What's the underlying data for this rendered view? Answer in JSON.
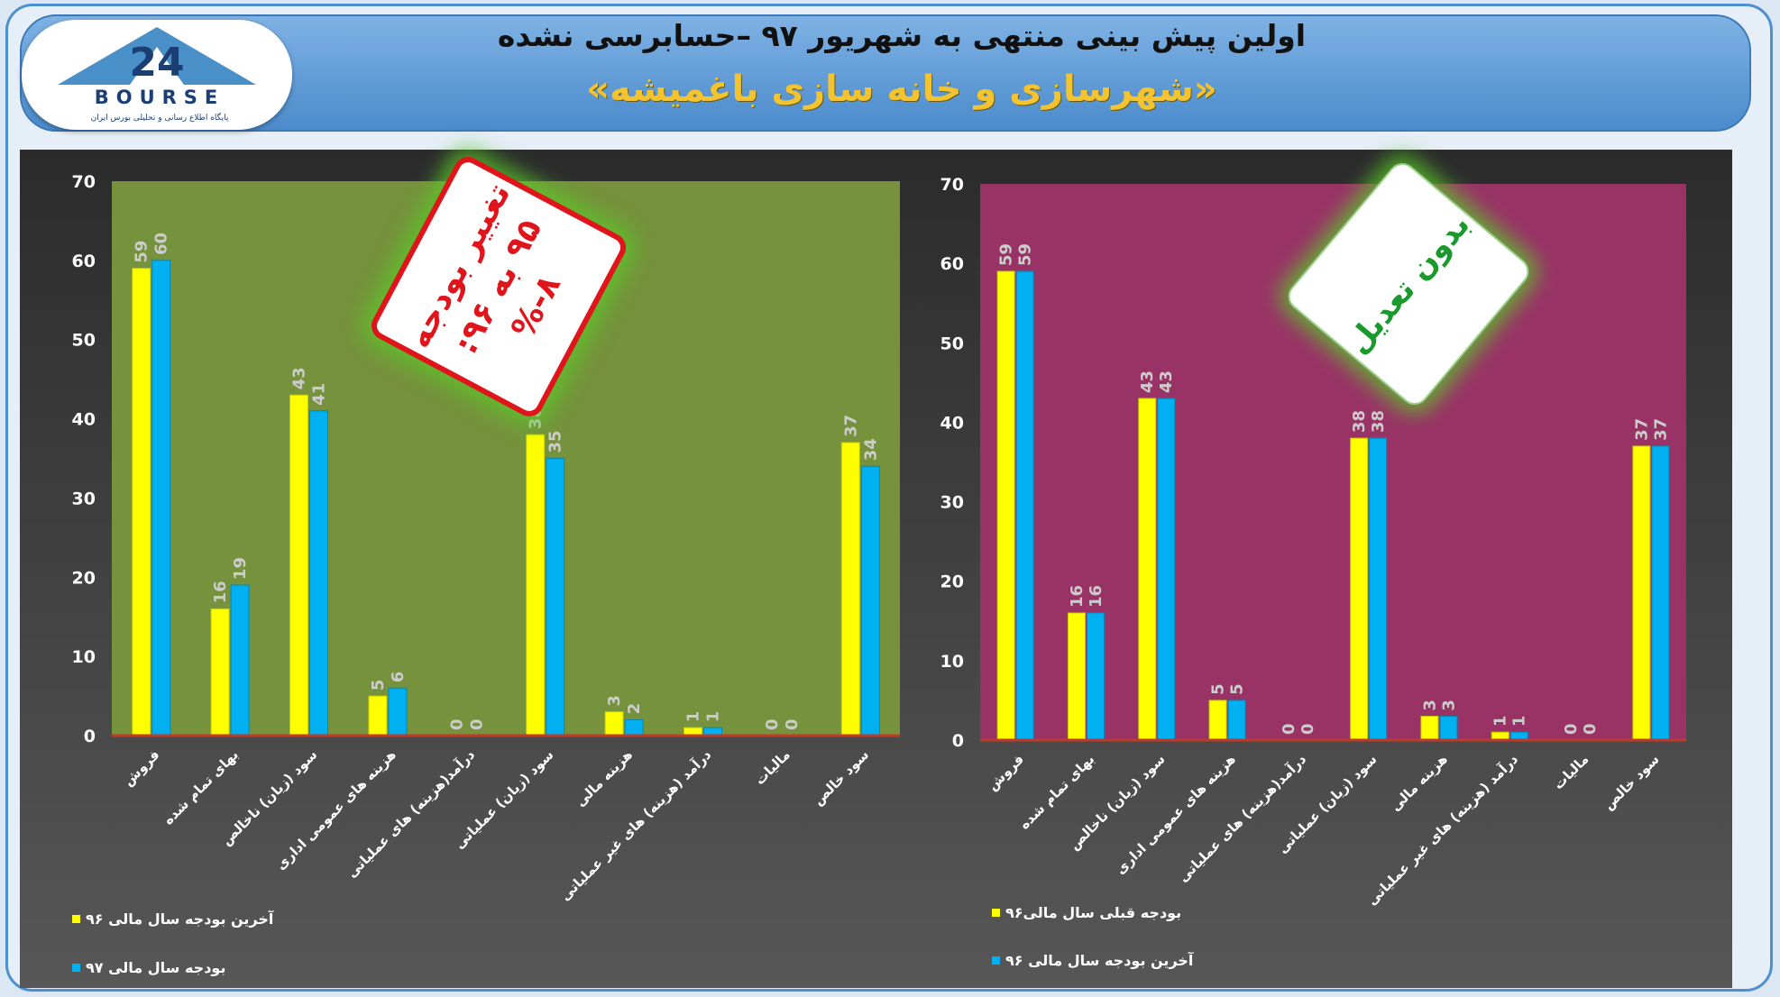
{
  "header": {
    "title": "اولین پیش بینی منتهی به شهریور ۹۷ –حسابرسی نشده",
    "subtitle": "«شهرسازی و خانه سازی باغمیشه»",
    "logo_text": "BOURSE",
    "logo_subtitle": "پایگاه اطلاع رسانی و تحلیلی بورس ایران"
  },
  "stamps": {
    "left_lines": [
      "تغییر بودجه",
      "۹۵ به ۹۶:",
      "۸-%"
    ],
    "right_text": "بدون تعدیل"
  },
  "colors": {
    "yellow": "#ffff00",
    "cyan": "#00b0f0",
    "left_plot_bg": "#76923c",
    "right_plot_bg": "#993366"
  },
  "chart_data": [
    {
      "type": "bar",
      "categories": [
        "فروش",
        "بهای تمام شده",
        "سود (زیان) ناخالص",
        "هزینه های عمومی اداری",
        "درآمد(هزینه) های عملیاتی",
        "سود (زیان) عملیاتی",
        "هزینه مالی",
        "درآمد (هزینه) های غیر عملیاتی",
        "مالیات",
        "سود خالص"
      ],
      "series": [
        {
          "name": "آخرین بودجه سال مالی ۹۶",
          "color": "yellow",
          "values": [
            59,
            16,
            43,
            5,
            0,
            38,
            3,
            1,
            0,
            37
          ]
        },
        {
          "name": "بودجه سال مالی ۹۷",
          "color": "cyan",
          "values": [
            60,
            19,
            41,
            6,
            0,
            35,
            2,
            1,
            0,
            34
          ]
        }
      ],
      "yticks": [
        "0",
        "10",
        "20",
        "30",
        "40",
        "50",
        "60",
        "70"
      ],
      "ylim": [
        0,
        70
      ],
      "grid": false,
      "legend": "bottom-left"
    },
    {
      "type": "bar",
      "categories": [
        "فروش",
        "بهای تمام شده",
        "سود (زیان) ناخالص",
        "هزینه های عمومی اداری",
        "درآمد(هزینه) های عملیاتی",
        "سود (زیان) عملیاتی",
        "هزینه مالی",
        "درآمد (هزینه) های غیر عملیاتی",
        "مالیات",
        "سود خالص"
      ],
      "series": [
        {
          "name": "بودجه قبلی سال مالی۹۶",
          "color": "yellow",
          "values": [
            59,
            16,
            43,
            5,
            0,
            38,
            3,
            1,
            0,
            37
          ]
        },
        {
          "name": "آخرین بودجه سال مالی ۹۶",
          "color": "cyan",
          "values": [
            59,
            16,
            43,
            5,
            0,
            38,
            3,
            1,
            0,
            37
          ]
        }
      ],
      "yticks": [
        "0",
        "10",
        "20",
        "30",
        "40",
        "50",
        "60",
        "70"
      ],
      "ylim": [
        0,
        70
      ],
      "grid": false,
      "legend": "bottom-left"
    }
  ]
}
